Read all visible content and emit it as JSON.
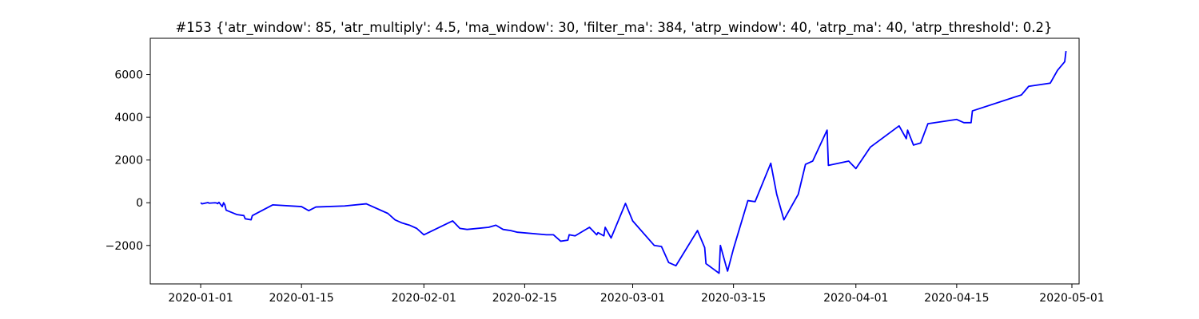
{
  "chart_data": {
    "type": "line",
    "title": "#153 {'atr_window': 85, 'atr_multiply': 4.5, 'ma_window': 30, 'filter_ma': 384, 'atrp_window': 40, 'atrp_ma': 40, 'atrp_threshold': 0.2}",
    "xlabel": "",
    "ylabel": "",
    "x_axis_type": "date",
    "xlim": [
      "2019-12-25",
      "2020-05-02"
    ],
    "ylim": [
      -3800,
      7700
    ],
    "grid": false,
    "legend": "none",
    "x_ticks": [
      "2020-01-01",
      "2020-01-15",
      "2020-02-01",
      "2020-02-15",
      "2020-03-01",
      "2020-03-15",
      "2020-04-01",
      "2020-04-15",
      "2020-05-01"
    ],
    "x_tick_labels": [
      "2020-01-01",
      "2020-01-15",
      "2020-02-01",
      "2020-02-15",
      "2020-03-01",
      "2020-03-15",
      "2020-04-01",
      "2020-04-15",
      "2020-05-01"
    ],
    "y_ticks": [
      -2000,
      0,
      2000,
      4000,
      6000
    ],
    "y_tick_labels": [
      "−2000",
      "0",
      "2000",
      "4000",
      "6000"
    ],
    "series": [
      {
        "color": "#0000ff",
        "points": [
          [
            "2020-01-01",
            0
          ],
          [
            "2020-01-01",
            -50
          ],
          [
            "2020-01-02",
            10
          ],
          [
            "2020-01-02",
            -20
          ],
          [
            "2020-01-03",
            0
          ],
          [
            "2020-01-03",
            -10
          ],
          [
            "2020-01-03",
            -40
          ],
          [
            "2020-01-03",
            20
          ],
          [
            "2020-01-04",
            -180
          ],
          [
            "2020-01-04",
            0
          ],
          [
            "2020-01-04",
            -100
          ],
          [
            "2020-01-04",
            -350
          ],
          [
            "2020-01-06",
            -550
          ],
          [
            "2020-01-07",
            -600
          ],
          [
            "2020-01-07",
            -750
          ],
          [
            "2020-01-08",
            -800
          ],
          [
            "2020-01-08",
            -600
          ],
          [
            "2020-01-11",
            -100
          ],
          [
            "2020-01-15",
            -180
          ],
          [
            "2020-01-16",
            -370
          ],
          [
            "2020-01-17",
            -200
          ],
          [
            "2020-01-21",
            -150
          ],
          [
            "2020-01-24",
            -50
          ],
          [
            "2020-01-27",
            -500
          ],
          [
            "2020-01-28",
            -800
          ],
          [
            "2020-01-29",
            -950
          ],
          [
            "2020-01-30",
            -1050
          ],
          [
            "2020-01-31",
            -1200
          ],
          [
            "2020-02-01",
            -1500
          ],
          [
            "2020-02-05",
            -850
          ],
          [
            "2020-02-06",
            -1200
          ],
          [
            "2020-02-07",
            -1250
          ],
          [
            "2020-02-10",
            -1150
          ],
          [
            "2020-02-11",
            -1050
          ],
          [
            "2020-02-12",
            -1250
          ],
          [
            "2020-02-13",
            -1300
          ],
          [
            "2020-02-14",
            -1380
          ],
          [
            "2020-02-18",
            -1500
          ],
          [
            "2020-02-19",
            -1500
          ],
          [
            "2020-02-20",
            -1800
          ],
          [
            "2020-02-21",
            -1750
          ],
          [
            "2020-02-21",
            -1500
          ],
          [
            "2020-02-22",
            -1550
          ],
          [
            "2020-02-24",
            -1150
          ],
          [
            "2020-02-25",
            -1500
          ],
          [
            "2020-02-25",
            -1400
          ],
          [
            "2020-02-26",
            -1550
          ],
          [
            "2020-02-26",
            -1150
          ],
          [
            "2020-02-27",
            -1650
          ],
          [
            "2020-02-29",
            -30
          ],
          [
            "2020-03-01",
            -850
          ],
          [
            "2020-03-04",
            -2000
          ],
          [
            "2020-03-05",
            -2050
          ],
          [
            "2020-03-06",
            -2800
          ],
          [
            "2020-03-07",
            -2950
          ],
          [
            "2020-03-10",
            -1300
          ],
          [
            "2020-03-11",
            -2100
          ],
          [
            "2020-03-11",
            -2850
          ],
          [
            "2020-03-13",
            -3300
          ],
          [
            "2020-03-13",
            -2000
          ],
          [
            "2020-03-14",
            -3000
          ],
          [
            "2020-03-14",
            -3200
          ],
          [
            "2020-03-15",
            -2150
          ],
          [
            "2020-03-17",
            100
          ],
          [
            "2020-03-18",
            50
          ],
          [
            "2020-03-20",
            1700
          ],
          [
            "2020-03-20",
            1850
          ],
          [
            "2020-03-21",
            400
          ],
          [
            "2020-03-22",
            -800
          ],
          [
            "2020-03-24",
            400
          ],
          [
            "2020-03-25",
            1800
          ],
          [
            "2020-03-26",
            1950
          ],
          [
            "2020-03-28",
            3400
          ],
          [
            "2020-03-28",
            1750
          ],
          [
            "2020-03-31",
            1950
          ],
          [
            "2020-04-01",
            1600
          ],
          [
            "2020-04-03",
            2600
          ],
          [
            "2020-04-07",
            3600
          ],
          [
            "2020-04-08",
            3000
          ],
          [
            "2020-04-08",
            3400
          ],
          [
            "2020-04-09",
            2700
          ],
          [
            "2020-04-10",
            2800
          ],
          [
            "2020-04-11",
            3700
          ],
          [
            "2020-04-15",
            3900
          ],
          [
            "2020-04-16",
            3750
          ],
          [
            "2020-04-17",
            3750
          ],
          [
            "2020-04-17",
            4300
          ],
          [
            "2020-04-24",
            5050
          ],
          [
            "2020-04-25",
            5450
          ],
          [
            "2020-04-28",
            5600
          ],
          [
            "2020-04-29",
            6200
          ],
          [
            "2020-04-30",
            6600
          ],
          [
            "2020-04-30",
            7100
          ]
        ]
      }
    ]
  }
}
